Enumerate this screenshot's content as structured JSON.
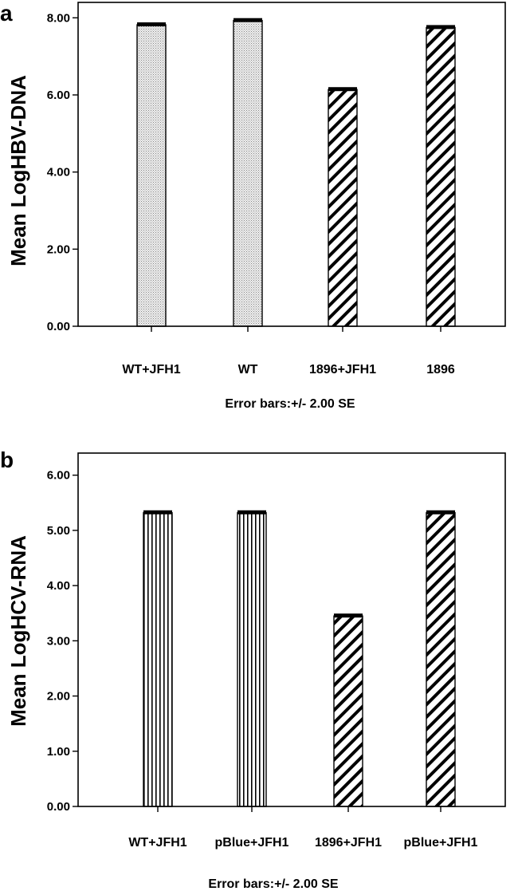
{
  "chart_data": [
    {
      "type": "bar",
      "panel": "a",
      "ylabel": "Mean LogHBV-DNA",
      "categories": [
        "WT+JFH1",
        "WT",
        "1896+JFH1",
        "1896"
      ],
      "values": [
        7.82,
        7.93,
        6.14,
        7.75
      ],
      "patterns": [
        "dots",
        "dots",
        "diag",
        "diag"
      ],
      "ylim": [
        0,
        8.4
      ],
      "yticks": [
        "0.00",
        "2.00",
        "4.00",
        "6.00",
        "8.00"
      ],
      "ytick_values": [
        0,
        2,
        4,
        6,
        8
      ],
      "note": "Error bars:+/- 2.00 SE"
    },
    {
      "type": "bar",
      "panel": "b",
      "ylabel": "Mean LogHCV-RNA",
      "categories": [
        "WT+JFH1",
        "pBlue+JFH1",
        "1896+JFH1",
        "pBlue+JFH1"
      ],
      "values": [
        5.32,
        5.32,
        3.45,
        5.32
      ],
      "patterns": [
        "vert",
        "vert",
        "diag",
        "diag"
      ],
      "ylim": [
        0,
        6.4
      ],
      "yticks": [
        "0.00",
        "1.00",
        "2.00",
        "3.00",
        "4.00",
        "5.00",
        "6.00"
      ],
      "ytick_values": [
        0,
        1,
        2,
        3,
        4,
        5,
        6
      ],
      "note": "Error bars:+/- 2.00 SE"
    }
  ]
}
